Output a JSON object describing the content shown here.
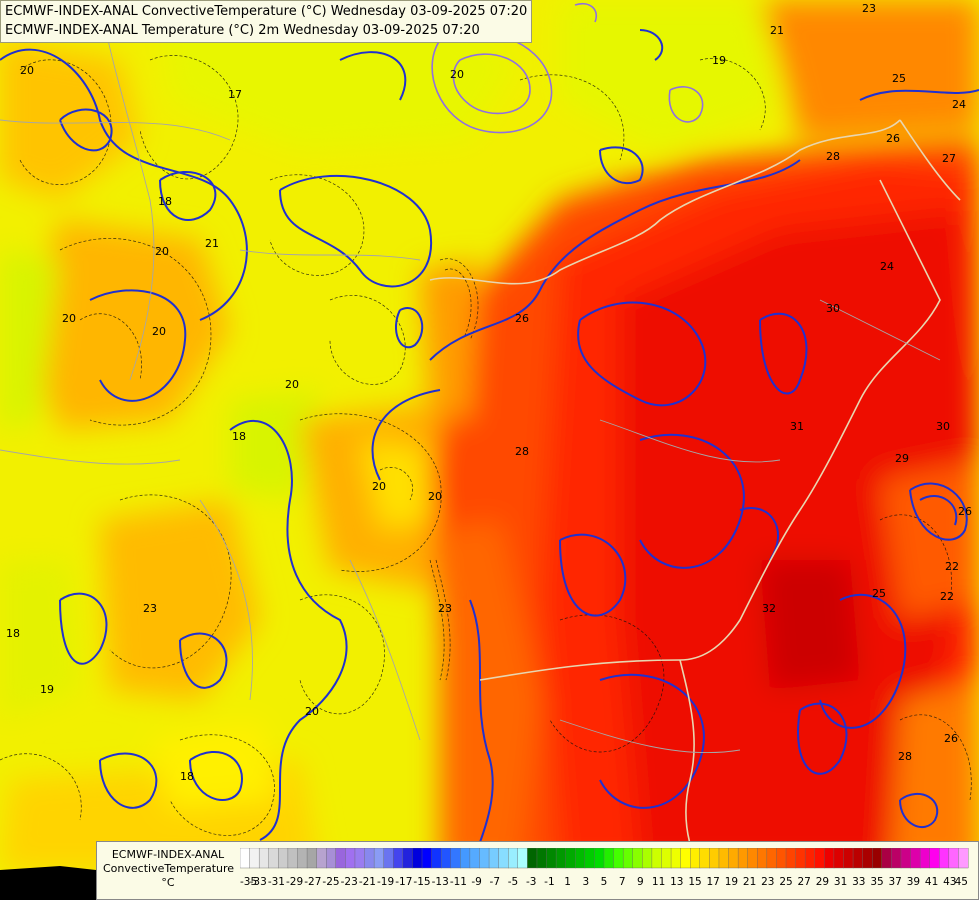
{
  "title": {
    "line1": "ECMWF-INDEX-ANAL ConvectiveTemperature (°C) Wednesday 03-09-2025 07:20",
    "line2": "ECMWF-INDEX-ANAL Temperature (°C) 2m Wednesday 03-09-2025 07:20"
  },
  "legend": {
    "line1": "ECMWF-INDEX-ANAL",
    "line2": "ConvectiveTemperature",
    "line3": "°C",
    "tick_labels": [
      "-35",
      "-33",
      "-31",
      "-29",
      "-27",
      "-25",
      "-23",
      "-21",
      "-19",
      "-17",
      "-15",
      "-13",
      "-11",
      "-9",
      "-7",
      "-5",
      "-3",
      "-1",
      "1",
      "3",
      "5",
      "7",
      "9",
      "11",
      "13",
      "15",
      "17",
      "19",
      "21",
      "23",
      "25",
      "27",
      "29",
      "31",
      "33",
      "35",
      "37",
      "39",
      "41",
      "43",
      "45"
    ],
    "colors": [
      "#ffffff",
      "#f2f2f2",
      "#e6e6e6",
      "#d9d9d9",
      "#cccccc",
      "#c0c0c0",
      "#b3b3b3",
      "#a6a6a6",
      "#b7a3cf",
      "#a78fd6",
      "#9966dd",
      "#a070f0",
      "#9a7cf0",
      "#8888ee",
      "#8a9cf5",
      "#6a74f0",
      "#4444ee",
      "#2222dd",
      "#0000dd",
      "#0000ff",
      "#1133ff",
      "#2255ff",
      "#3377ff",
      "#4499ff",
      "#55aaff",
      "#66bbff",
      "#77ccff",
      "#88ddff",
      "#99eeff",
      "#aaffff",
      "#006600",
      "#007700",
      "#008800",
      "#009900",
      "#00aa00",
      "#00bb00",
      "#00cc00",
      "#00dd00",
      "#22ee00",
      "#44ff00",
      "#66ff00",
      "#88ff00",
      "#aaff00",
      "#ccff00",
      "#ddff00",
      "#eeff00",
      "#ffff00",
      "#ffee00",
      "#ffdd00",
      "#ffcc00",
      "#ffbb00",
      "#ffaa00",
      "#ff9900",
      "#ff8800",
      "#ff7700",
      "#ff6600",
      "#ff5500",
      "#ff4400",
      "#ff3300",
      "#ff2200",
      "#ff1100",
      "#ee0000",
      "#dd0000",
      "#cc0000",
      "#bb0000",
      "#aa0000",
      "#990000",
      "#aa0044",
      "#bb0066",
      "#cc0088",
      "#dd00aa",
      "#ee00cc",
      "#ff00ee",
      "#ff33ff",
      "#ff66ff",
      "#ff99ff"
    ]
  },
  "map": {
    "contour_labels": [
      "20",
      "21",
      "18",
      "17",
      "20",
      "20",
      "20",
      "20",
      "20",
      "18",
      "20",
      "20",
      "23",
      "18",
      "19",
      "20",
      "18",
      "23",
      "24",
      "26",
      "27",
      "25",
      "28",
      "26",
      "30",
      "31",
      "30",
      "29",
      "32",
      "25",
      "28",
      "26",
      "28",
      "26",
      "22",
      "19",
      "21",
      "24",
      "23",
      "22"
    ]
  }
}
